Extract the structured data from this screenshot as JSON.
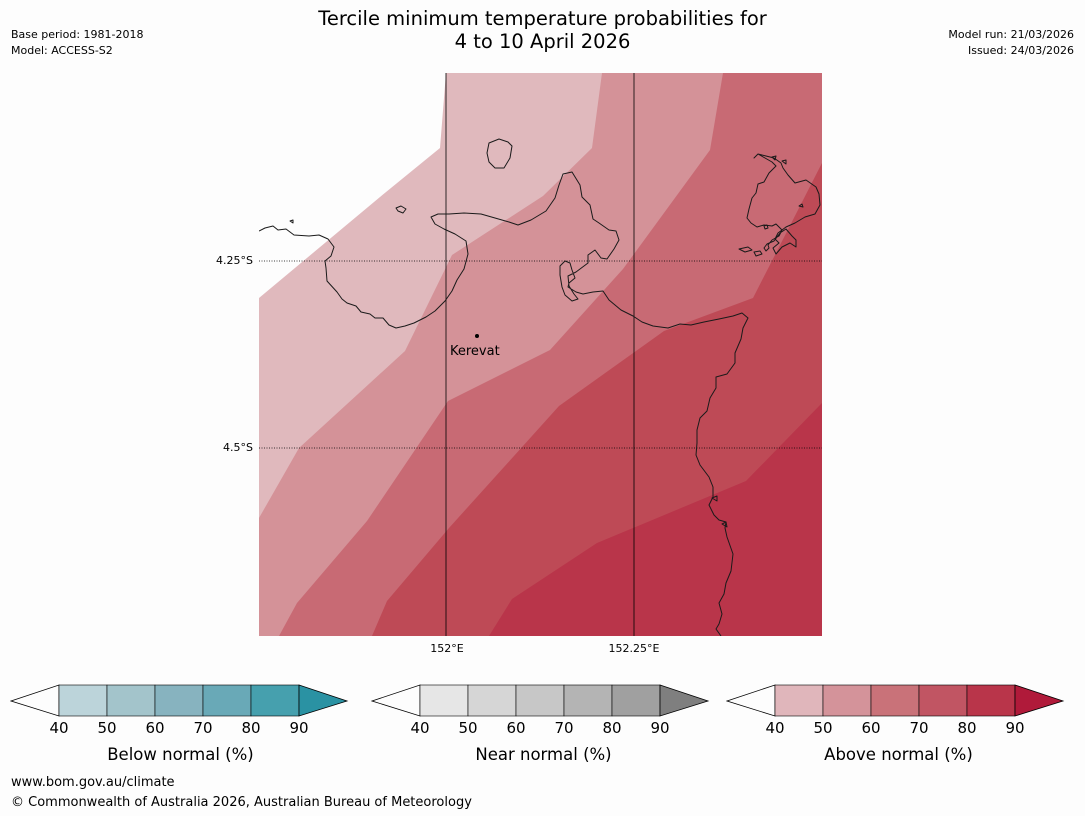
{
  "header": {
    "title_line1": "Tercile minimum temperature probabilities for",
    "title_line2": "4 to 10 April 2026",
    "base_period": "Base period: 1981-2018",
    "model": "Model: ACCESS-S2",
    "model_run": "Model run: 21/03/2026",
    "issued": "Issued: 24/03/2026"
  },
  "map": {
    "place_label": "Kerevat",
    "lat_labels": [
      "4.25°S",
      "4.5°S"
    ],
    "lon_labels": [
      "152°E",
      "152.25°E"
    ],
    "colors": {
      "above_40_50": "#e0b9bd",
      "above_50_60": "#d49298",
      "above_60_70": "#c86a74",
      "above_70_80": "#be4a56",
      "above_80_90": "#b9354a",
      "coast": "#1a1a1a"
    }
  },
  "colorbars": [
    {
      "label": "Below normal (%)",
      "ticks": [
        "40",
        "50",
        "60",
        "70",
        "80",
        "90"
      ],
      "colors": [
        "#bcd4da",
        "#a3c4cb",
        "#87b3bf",
        "#69a9b7",
        "#46a0ae",
        "#2a92a3"
      ]
    },
    {
      "label": "Near normal (%)",
      "ticks": [
        "40",
        "50",
        "60",
        "70",
        "80",
        "90"
      ],
      "colors": [
        "#e6e6e6",
        "#d6d6d6",
        "#c7c7c7",
        "#b4b4b4",
        "#a0a0a0",
        "#7f7f7f"
      ]
    },
    {
      "label": "Above normal (%)",
      "ticks": [
        "40",
        "50",
        "60",
        "70",
        "80",
        "90"
      ],
      "colors": [
        "#e0b6bb",
        "#d4939a",
        "#c97279",
        "#c15563",
        "#b9354a",
        "#b01a3a"
      ]
    }
  ],
  "footer": {
    "url": "www.bom.gov.au/climate",
    "copyright": "© Commonwealth of Australia 2026, Australian Bureau of Meteorology"
  }
}
